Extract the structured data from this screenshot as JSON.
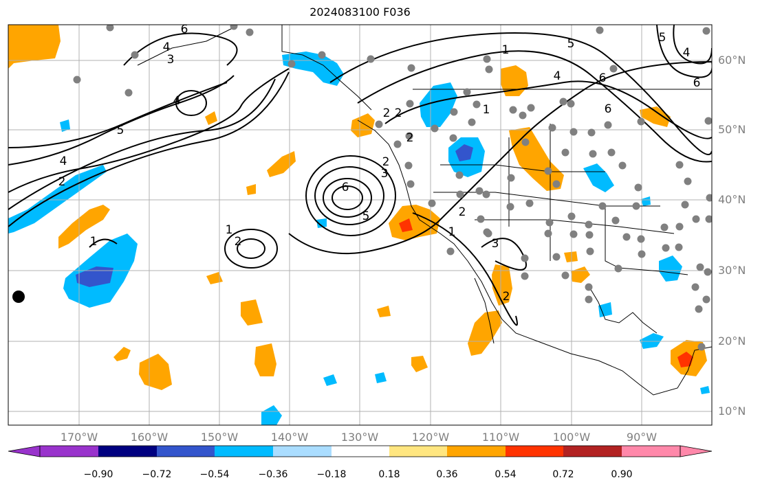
{
  "title": "2024083100 F036",
  "lat_labels": [
    "60°N",
    "50°N",
    "40°N",
    "30°N",
    "20°N",
    "10°N"
  ],
  "lon_labels": [
    "170°W",
    "160°W",
    "150°W",
    "140°W",
    "130°W",
    "120°W",
    "110°W",
    "100°W",
    "90°W"
  ],
  "colorbar": {
    "ticks": [
      "−0.90",
      "−0.72",
      "−0.54",
      "−0.36",
      "−0.18",
      "0.18",
      "0.36",
      "0.54",
      "0.72",
      "0.90"
    ],
    "colors": [
      "#9933cc",
      "#000080",
      "#3355cc",
      "#00bbff",
      "#aaddff",
      "#ffffff",
      "#ffe680",
      "#ffa500",
      "#ff3300",
      "#b22222",
      "#ff88aa"
    ]
  },
  "contour_labels": [
    "6",
    "4",
    "3",
    "4",
    "5",
    "4",
    "2",
    "1",
    "2",
    "1",
    "2",
    "6",
    "5",
    "3",
    "2",
    "2",
    "2",
    "1",
    "2",
    "3",
    "2",
    "1",
    "4",
    "5",
    "6",
    "5",
    "4",
    "6",
    "6",
    "1"
  ]
}
